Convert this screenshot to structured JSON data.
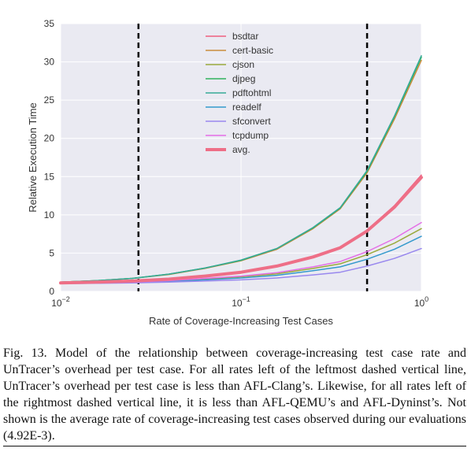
{
  "chart_data": {
    "type": "line",
    "xscale": "log",
    "xlim": [
      0.01,
      1
    ],
    "ylim": [
      0,
      35
    ],
    "xlabel": "Rate of Coverage-Increasing Test Cases",
    "ylabel": "Relative Execution Time",
    "grid": true,
    "legend_position": "top-center",
    "yticks": [
      "0",
      "5",
      "10",
      "15",
      "20",
      "25",
      "30",
      "35"
    ],
    "xticks": [
      {
        "base": "10",
        "exp": "−2",
        "value": 0.01
      },
      {
        "base": "10",
        "exp": "−1",
        "value": 0.1
      },
      {
        "base": "10",
        "exp": "0",
        "value": 1
      }
    ],
    "vlines": [
      0.027,
      0.5
    ],
    "x": [
      0.01,
      0.0158,
      0.025,
      0.0398,
      0.0631,
      0.1,
      0.158,
      0.251,
      0.355,
      0.5,
      0.708,
      1.0
    ],
    "series": [
      {
        "name": "bsdtar",
        "color": "#f06080",
        "width": 1.5,
        "values": [
          1.1,
          1.2,
          1.35,
          1.6,
          2.0,
          2.5,
          3.3,
          4.6,
          5.8,
          8.0,
          11.2,
          15.2
        ]
      },
      {
        "name": "cert-basic",
        "color": "#c98c3c",
        "width": 1.5,
        "values": [
          1.2,
          1.4,
          1.7,
          2.2,
          3.0,
          4.0,
          5.5,
          8.2,
          10.8,
          15.5,
          22.5,
          30.2
        ]
      },
      {
        "name": "cjson",
        "color": "#9aaa3c",
        "width": 1.5,
        "values": [
          1.05,
          1.1,
          1.2,
          1.35,
          1.6,
          1.9,
          2.3,
          3.0,
          3.6,
          4.8,
          6.3,
          8.2
        ]
      },
      {
        "name": "djpeg",
        "color": "#2fb25c",
        "width": 1.5,
        "values": [
          1.2,
          1.4,
          1.7,
          2.25,
          3.05,
          4.05,
          5.6,
          8.3,
          10.9,
          15.7,
          22.8,
          30.6
        ]
      },
      {
        "name": "pdftohtml",
        "color": "#36aa98",
        "width": 1.5,
        "values": [
          1.2,
          1.4,
          1.7,
          2.25,
          3.05,
          4.1,
          5.6,
          8.35,
          10.95,
          15.8,
          22.9,
          30.8
        ]
      },
      {
        "name": "readelf",
        "color": "#3399cc",
        "width": 1.5,
        "values": [
          1.05,
          1.1,
          1.15,
          1.3,
          1.5,
          1.75,
          2.1,
          2.7,
          3.2,
          4.2,
          5.5,
          7.2
        ]
      },
      {
        "name": "sfconvert",
        "color": "#9988ee",
        "width": 1.5,
        "values": [
          1.0,
          1.05,
          1.1,
          1.2,
          1.35,
          1.5,
          1.75,
          2.15,
          2.5,
          3.3,
          4.3,
          5.6
        ]
      },
      {
        "name": "tcpdump",
        "color": "#e46ee6",
        "width": 1.5,
        "values": [
          1.05,
          1.1,
          1.2,
          1.4,
          1.7,
          2.0,
          2.45,
          3.2,
          3.9,
          5.2,
          6.9,
          9.0
        ]
      },
      {
        "name": "avg.",
        "color": "#ee6f87",
        "width": 4,
        "values": [
          1.1,
          1.2,
          1.35,
          1.6,
          2.0,
          2.5,
          3.3,
          4.5,
          5.7,
          7.9,
          11.0,
          14.9
        ]
      }
    ]
  },
  "caption": {
    "text": "Fig. 13. Model of the relationship between coverage-increasing test case rate and UnTracer’s overhead per test case. For all rates left of the leftmost dashed vertical line, UnTracer’s overhead per test case is less than AFL-Clang’s. Likewise, for all rates left of the rightmost dashed vertical line, it is less than AFL-QEMU’s and AFL-Dyninst’s. Not shown is the average rate of coverage-increasing test cases observed during our evaluations (4.92E-3)."
  }
}
